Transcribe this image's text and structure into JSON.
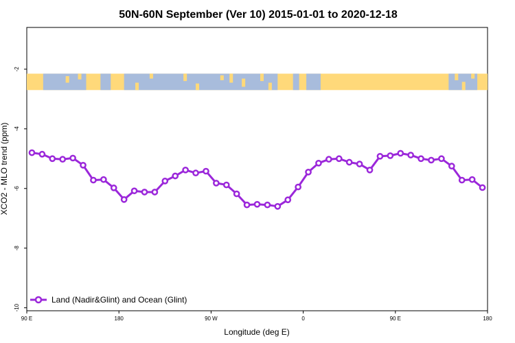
{
  "chart_data": {
    "type": "line",
    "title": "50N-60N September (Ver 10)   2015-01-01 to 2020-12-18",
    "xlabel": "Longitude (deg E)",
    "ylabel": "XCO2 - MLO trend (ppm)",
    "xlim": [
      90,
      540
    ],
    "ylim": [
      -10.1,
      -0.6
    ],
    "x_ticks": [
      {
        "value": 90,
        "label": "90 E"
      },
      {
        "value": 180,
        "label": "180"
      },
      {
        "value": 270,
        "label": "90 W"
      },
      {
        "value": 360,
        "label": "0"
      },
      {
        "value": 450,
        "label": "90 E"
      },
      {
        "value": 540,
        "label": "180"
      }
    ],
    "y_ticks": [
      {
        "value": -2,
        "label": "-2"
      },
      {
        "value": -4,
        "label": "-4"
      },
      {
        "value": -6,
        "label": "-6"
      },
      {
        "value": -8,
        "label": "-8"
      },
      {
        "value": -10,
        "label": "-10"
      }
    ],
    "grid": false,
    "legend_position": "bottom-left",
    "map_band": {
      "y_range": [
        -2.15,
        -2.7
      ],
      "land_color": "#FFD97A",
      "ocean_color": "#A8BCDC"
    },
    "series": [
      {
        "name": "Land (Nadir&Glint) and Ocean (Glint)",
        "color": "#9B27DA",
        "x": [
          95,
          105,
          115,
          125,
          135,
          145,
          155,
          165,
          175,
          185,
          195,
          205,
          215,
          225,
          235,
          245,
          255,
          265,
          275,
          285,
          295,
          305,
          315,
          325,
          335,
          345,
          355,
          365,
          375,
          385,
          395,
          405,
          415,
          425,
          435,
          445,
          455,
          465,
          475,
          485,
          495,
          505,
          515,
          525,
          535
        ],
        "y": [
          -4.8,
          -4.85,
          -5.0,
          -5.02,
          -4.98,
          -5.22,
          -5.72,
          -5.7,
          -5.98,
          -6.37,
          -6.08,
          -6.12,
          -6.12,
          -5.75,
          -5.58,
          -5.38,
          -5.48,
          -5.42,
          -5.82,
          -5.88,
          -6.18,
          -6.55,
          -6.53,
          -6.55,
          -6.6,
          -6.38,
          -5.95,
          -5.45,
          -5.15,
          -5.02,
          -5.0,
          -5.12,
          -5.18,
          -5.38,
          -4.92,
          -4.9,
          -4.82,
          -4.88,
          -5.0,
          -5.05,
          -5.0,
          -5.25,
          -5.72,
          -5.7,
          -5.97
        ]
      }
    ]
  }
}
